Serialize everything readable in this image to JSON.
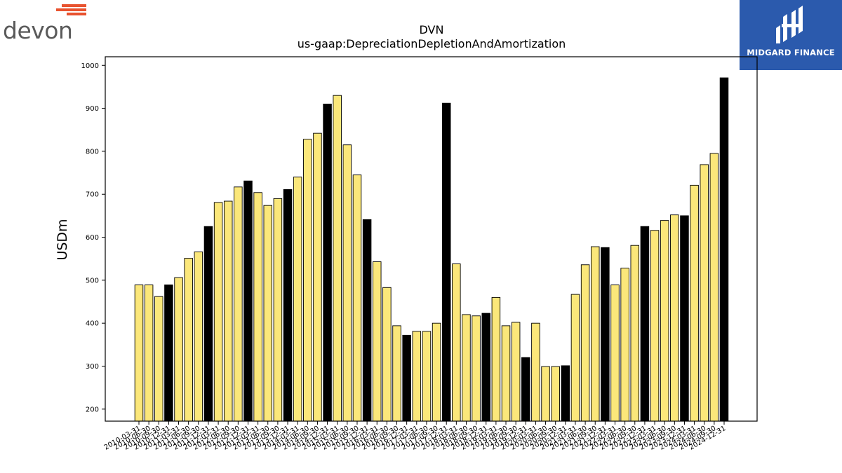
{
  "logos": {
    "left_text": "devon",
    "right_text": "MIDGARD FINANCE"
  },
  "colors": {
    "bar_normal": "#fbe77a",
    "bar_highlight": "#000000",
    "bar_edge": "#000000",
    "logo_accent": "#e8532f",
    "logo_text": "#5a5a5a",
    "brand_bg": "#2b5aad"
  },
  "chart_data": {
    "type": "bar",
    "title": "DVN",
    "subtitle": "us-gaap:DepreciationDepletionAndAmortization",
    "xlabel": "",
    "ylabel": "USDm",
    "ylim": [
      172,
      1020
    ],
    "yticks": [
      200,
      300,
      400,
      500,
      600,
      700,
      800,
      900,
      1000
    ],
    "grid": false,
    "categories": [
      "2010-03-31",
      "2010-06-30",
      "2010-09-30",
      "2010-12-31",
      "2011-03-31",
      "2011-06-30",
      "2011-09-30",
      "2011-12-31",
      "2012-03-31",
      "2012-06-30",
      "2012-09-30",
      "2012-12-31",
      "2013-03-31",
      "2013-06-30",
      "2013-09-30",
      "2013-12-31",
      "2014-03-31",
      "2014-06-30",
      "2014-09-30",
      "2014-12-31",
      "2015-03-31",
      "2015-06-30",
      "2015-09-30",
      "2015-12-31",
      "2016-03-31",
      "2016-06-30",
      "2016-09-30",
      "2016-12-31",
      "2017-03-31",
      "2017-06-30",
      "2017-09-30",
      "2017-12-31",
      "2018-03-31",
      "2018-06-30",
      "2018-09-30",
      "2018-12-31",
      "2019-03-31",
      "2019-06-30",
      "2019-09-30",
      "2019-12-31",
      "2020-03-31",
      "2020-06-30",
      "2020-09-30",
      "2020-12-31",
      "2021-03-31",
      "2021-06-30",
      "2021-09-30",
      "2021-12-31",
      "2022-03-31",
      "2022-06-30",
      "2022-09-30",
      "2022-12-31",
      "2023-03-31",
      "2023-06-30",
      "2023-09-30",
      "2023-12-31",
      "2024-03-31",
      "2024-06-30",
      "2024-09-30",
      "2024-12-31"
    ],
    "values": [
      489,
      489,
      462,
      489,
      506,
      551,
      566,
      625,
      681,
      684,
      717,
      731,
      704,
      674,
      690,
      711,
      740,
      828,
      842,
      910,
      930,
      815,
      745,
      641,
      543,
      483,
      394,
      372,
      381,
      381,
      400,
      912,
      538,
      420,
      417,
      423,
      460,
      394,
      402,
      320,
      400,
      299,
      299,
      301,
      467,
      536,
      578,
      576,
      489,
      528,
      581,
      625,
      616,
      639,
      652,
      650,
      721,
      769,
      795,
      971
    ],
    "highlight": [
      false,
      false,
      false,
      true,
      false,
      false,
      false,
      true,
      false,
      false,
      false,
      true,
      false,
      false,
      false,
      true,
      false,
      false,
      false,
      true,
      false,
      false,
      false,
      true,
      false,
      false,
      false,
      true,
      false,
      false,
      false,
      true,
      false,
      false,
      false,
      true,
      false,
      false,
      false,
      true,
      false,
      false,
      false,
      true,
      false,
      false,
      false,
      true,
      false,
      false,
      false,
      true,
      false,
      false,
      false,
      true,
      false,
      false,
      false,
      true
    ]
  }
}
